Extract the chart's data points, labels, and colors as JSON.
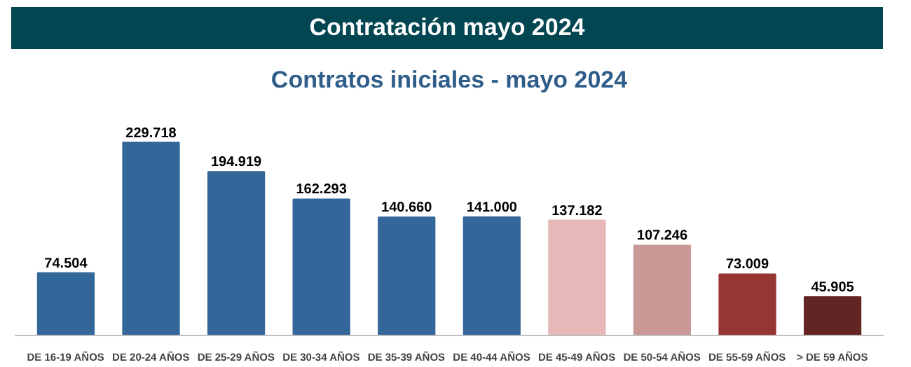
{
  "chart_data": {
    "type": "bar",
    "title": "Contratación mayo 2024",
    "subtitle": "Contratos iniciales - mayo 2024",
    "categories": [
      "DE 16-19 AÑOS",
      "DE 20-24 AÑOS",
      "DE 25-29 AÑOS",
      "DE 30-34 AÑOS",
      "DE 35-39 AÑOS",
      "DE 40-44 AÑOS",
      "DE 45-49 AÑOS",
      "DE 50-54 AÑOS",
      "DE 55-59 AÑOS",
      "> DE 59 AÑOS"
    ],
    "values": [
      74504,
      229718,
      194919,
      162293,
      140660,
      141000,
      137182,
      107246,
      73009,
      45905
    ],
    "value_labels": [
      "74.504",
      "229.718",
      "194.919",
      "162.293",
      "140.660",
      "141.000",
      "137.182",
      "107.246",
      "73.009",
      "45.905"
    ],
    "colors": [
      "#336699",
      "#336699",
      "#336699",
      "#336699",
      "#336699",
      "#336699",
      "#e6b8b7",
      "#c99897",
      "#963634",
      "#632523"
    ],
    "grid": false
  }
}
